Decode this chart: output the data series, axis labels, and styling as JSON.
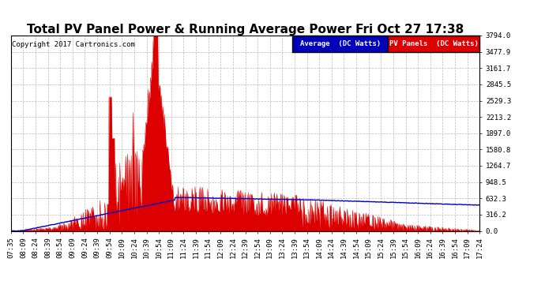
{
  "title": "Total PV Panel Power & Running Average Power Fri Oct 27 17:38",
  "copyright": "Copyright 2017 Cartronics.com",
  "ymax": 3794.0,
  "ymin": 0.0,
  "yticks": [
    0.0,
    316.2,
    632.3,
    948.5,
    1264.7,
    1580.8,
    1897.0,
    2213.2,
    2529.3,
    2845.5,
    3161.7,
    3477.9,
    3794.0
  ],
  "background_color": "#ffffff",
  "grid_color": "#bbbbbb",
  "pv_color": "#dd0000",
  "avg_color": "#0000cc",
  "legend_avg_bg": "#0000bb",
  "legend_pv_bg": "#dd0000",
  "legend_avg_text": "Average  (DC Watts)",
  "legend_pv_text": "PV Panels  (DC Watts)",
  "title_fontsize": 11,
  "copyright_fontsize": 6.5,
  "tick_fontsize": 6.5,
  "legend_fontsize": 6.5,
  "x_tick_labels": [
    "07:35",
    "08:09",
    "08:24",
    "08:39",
    "08:54",
    "09:09",
    "09:24",
    "09:39",
    "09:54",
    "10:09",
    "10:24",
    "10:39",
    "10:54",
    "11:09",
    "11:24",
    "11:39",
    "11:54",
    "12:09",
    "12:24",
    "12:39",
    "12:54",
    "13:09",
    "13:24",
    "13:39",
    "13:54",
    "14:09",
    "14:24",
    "14:39",
    "14:54",
    "15:09",
    "15:24",
    "15:39",
    "15:54",
    "16:09",
    "16:24",
    "16:39",
    "16:54",
    "17:09",
    "17:24"
  ]
}
